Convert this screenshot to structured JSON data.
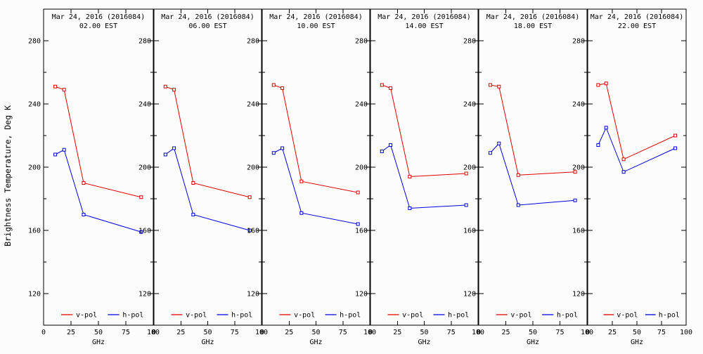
{
  "figure": {
    "y_axis_label": "Brightness Temperature, Deg K",
    "colors": {
      "v_pol": "#e00000",
      "h_pol": "#0000dd",
      "axis": "#000000",
      "background": "#fcfcfc"
    }
  },
  "chart_data": {
    "type": "line",
    "title": "Mar 24, 2016 (2016084)",
    "xlabel": "GHz",
    "ylabel": "Brightness Temperature, Deg K",
    "x": [
      10.65,
      18.7,
      36.5,
      89.0
    ],
    "xlim": [
      0,
      100
    ],
    "ylim": [
      100,
      300
    ],
    "xticks": [
      0,
      25,
      50,
      75,
      100
    ],
    "xtick_labels": [
      "0",
      "25",
      "50",
      "75",
      "100"
    ],
    "top_xticks": [
      25,
      50,
      75
    ],
    "ytick_step": 20,
    "ytick_labeled": [
      120,
      160,
      200,
      240,
      280
    ],
    "grid": false,
    "legend_position": "bottom-inside",
    "legend": [
      {
        "name": "v-pol",
        "color": "#e00000"
      },
      {
        "name": "h-pol",
        "color": "#0000dd"
      }
    ],
    "panels": [
      {
        "title_line1": "Mar 24, 2016 (2016084)",
        "title_line2": "02.00 EST",
        "series": [
          {
            "name": "v-pol",
            "color": "#e00000",
            "values": [
              251,
              249,
              190,
              181
            ]
          },
          {
            "name": "h-pol",
            "color": "#0000dd",
            "values": [
              208,
              211,
              170,
              159
            ]
          }
        ]
      },
      {
        "title_line1": "Mar 24, 2016 (2016084)",
        "title_line2": "06.00 EST",
        "series": [
          {
            "name": "v-pol",
            "color": "#e00000",
            "values": [
              251,
              249,
              190,
              181
            ]
          },
          {
            "name": "h-pol",
            "color": "#0000dd",
            "values": [
              208,
              212,
              170,
              160
            ]
          }
        ]
      },
      {
        "title_line1": "Mar 24, 2016 (2016084)",
        "title_line2": "10.00 EST",
        "series": [
          {
            "name": "v-pol",
            "color": "#e00000",
            "values": [
              252,
              250,
              191,
              184
            ]
          },
          {
            "name": "h-pol",
            "color": "#0000dd",
            "values": [
              209,
              212,
              171,
              164
            ]
          }
        ]
      },
      {
        "title_line1": "Mar 24, 2016 (2016084)",
        "title_line2": "14.00 EST",
        "series": [
          {
            "name": "v-pol",
            "color": "#e00000",
            "values": [
              252,
              250,
              194,
              196
            ]
          },
          {
            "name": "h-pol",
            "color": "#0000dd",
            "values": [
              210,
              214,
              174,
              176
            ]
          }
        ]
      },
      {
        "title_line1": "Mar 24, 2016 (2016084)",
        "title_line2": "18.00 EST",
        "series": [
          {
            "name": "v-pol",
            "color": "#e00000",
            "values": [
              252,
              251,
              195,
              197
            ]
          },
          {
            "name": "h-pol",
            "color": "#0000dd",
            "values": [
              209,
              215,
              176,
              179
            ]
          }
        ]
      },
      {
        "title_line1": "Mar 24, 2016 (2016084)",
        "title_line2": "22.00 EST",
        "series": [
          {
            "name": "v-pol",
            "color": "#e00000",
            "values": [
              252,
              253,
              205,
              220
            ]
          },
          {
            "name": "h-pol",
            "color": "#0000dd",
            "values": [
              214,
              225,
              197,
              212
            ]
          }
        ]
      }
    ]
  }
}
